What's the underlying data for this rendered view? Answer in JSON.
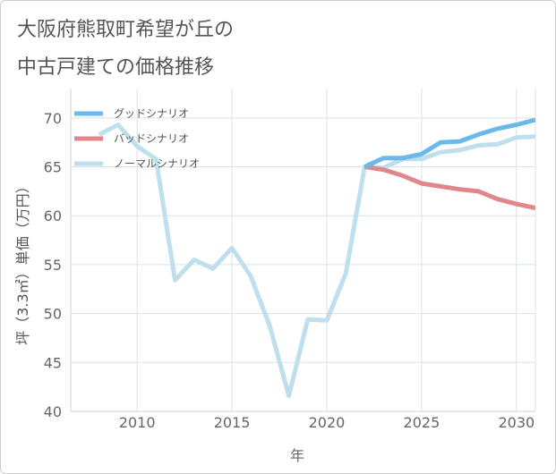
{
  "title_line1": "大阪府熊取町希望が丘の",
  "title_line2": "中古戸建ての価格推移",
  "chart_data": {
    "type": "line",
    "xlabel": "年",
    "ylabel": "坪（3.3㎡）単価（万円）",
    "xlim": [
      2006.5,
      2031
    ],
    "ylim": [
      40,
      73
    ],
    "xticks": [
      2010,
      2015,
      2020,
      2025,
      2030
    ],
    "yticks": [
      40,
      45,
      50,
      55,
      60,
      65,
      70
    ],
    "grid": true,
    "legend_position": "top-left",
    "series": [
      {
        "name": "グッドシナリオ",
        "color": "#6bb8ea",
        "x": [
          2022,
          2023,
          2024,
          2025,
          2026,
          2027,
          2028,
          2029,
          2030,
          2031
        ],
        "y": [
          65.0,
          65.9,
          65.9,
          66.3,
          67.5,
          67.6,
          68.3,
          68.9,
          69.3,
          69.8
        ]
      },
      {
        "name": "バッドシナリオ",
        "color": "#e0868d",
        "x": [
          2022,
          2023,
          2024,
          2025,
          2026,
          2027,
          2028,
          2029,
          2030,
          2031
        ],
        "y": [
          65.0,
          64.7,
          64.1,
          63.3,
          63.0,
          62.7,
          62.5,
          61.7,
          61.2,
          60.8
        ]
      },
      {
        "name": "ノーマルシナリオ",
        "color": "#bfdfec",
        "x": [
          2008,
          2009,
          2010,
          2011,
          2012,
          2013,
          2014,
          2015,
          2016,
          2017,
          2018,
          2019,
          2020,
          2021,
          2022,
          2023,
          2024,
          2025,
          2026,
          2027,
          2028,
          2029,
          2030,
          2031
        ],
        "y": [
          68.3,
          69.3,
          67.1,
          65.8,
          53.4,
          55.5,
          54.6,
          56.7,
          53.8,
          48.7,
          41.6,
          49.4,
          49.3,
          54.1,
          65.0,
          64.9,
          65.8,
          65.8,
          66.5,
          66.7,
          67.2,
          67.3,
          68.0,
          68.1
        ]
      }
    ]
  }
}
